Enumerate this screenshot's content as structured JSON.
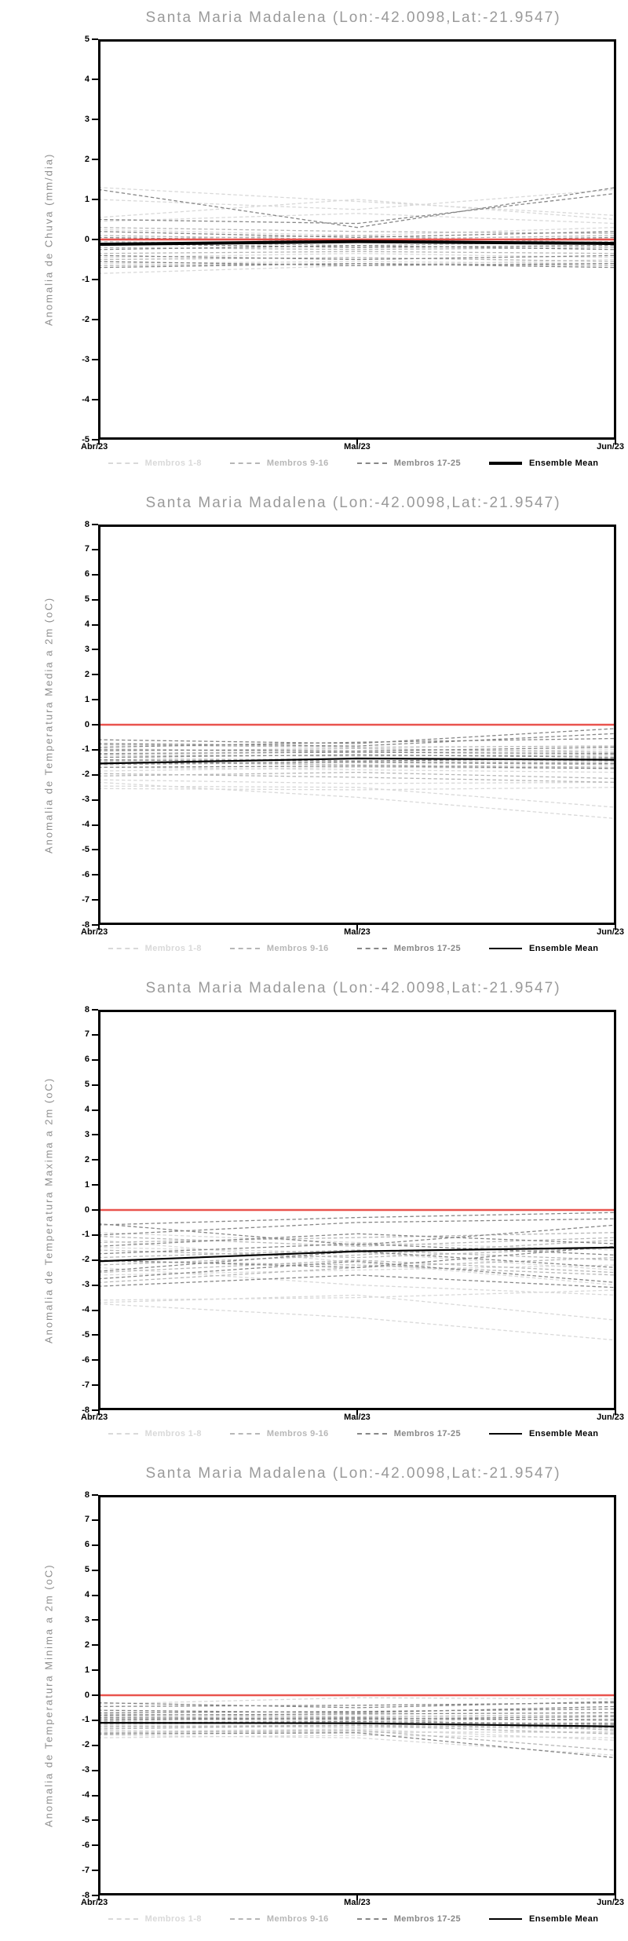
{
  "group_colors": [
    "#d9d9d9",
    "#b7b7b7",
    "#878787"
  ],
  "mean_color": "#000000",
  "zero_line_color": "#e9534e",
  "axis_color": "#000000",
  "title_color": "#9a9a9a",
  "legend": {
    "items": [
      {
        "label": "Membros 1-8",
        "color": "#d9d9d9",
        "dashed": true
      },
      {
        "label": "Membros 9-16",
        "color": "#b7b7b7",
        "dashed": true
      },
      {
        "label": "Membros 17-25",
        "color": "#878787",
        "dashed": true
      },
      {
        "label": "Ensemble Mean",
        "color": "#000000",
        "dashed": false
      }
    ]
  },
  "chart_data": [
    {
      "type": "line",
      "title": "Santa Maria Madalena (Lon:-42.0098,Lat:-21.9547)",
      "ylabel": "Anomalia de Chuva (mm/dia)",
      "xlabel": "",
      "x_categories": [
        "Abr/23",
        "Mai/23",
        "Jun/23"
      ],
      "ylim": [
        -5,
        5
      ],
      "y_ticks": [
        5,
        4,
        3,
        2,
        1,
        0,
        -1,
        -2,
        -3,
        -4,
        -5
      ],
      "zero_line": 0,
      "mean_width": 4,
      "ensemble_mean": [
        -0.12,
        -0.05,
        -0.1
      ],
      "members": [
        {
          "g": 0,
          "v": [
            1.3,
            0.95,
            0.6
          ]
        },
        {
          "g": 0,
          "v": [
            1.0,
            0.75,
            1.25
          ]
        },
        {
          "g": 0,
          "v": [
            0.55,
            1.0,
            0.5
          ]
        },
        {
          "g": 0,
          "v": [
            0.45,
            0.65,
            0.4
          ]
        },
        {
          "g": 0,
          "v": [
            -0.85,
            -0.65,
            -0.5
          ]
        },
        {
          "g": 0,
          "v": [
            -0.6,
            -0.55,
            -0.6
          ]
        },
        {
          "g": 0,
          "v": [
            0.25,
            0.1,
            0.3
          ]
        },
        {
          "g": 0,
          "v": [
            -0.45,
            -0.35,
            -0.45
          ]
        },
        {
          "g": 1,
          "v": [
            0.3,
            0.2,
            0.15
          ]
        },
        {
          "g": 1,
          "v": [
            0.1,
            0.0,
            0.1
          ]
        },
        {
          "g": 1,
          "v": [
            -0.05,
            -0.15,
            -0.05
          ]
        },
        {
          "g": 1,
          "v": [
            -0.2,
            -0.25,
            -0.2
          ]
        },
        {
          "g": 1,
          "v": [
            -0.35,
            -0.3,
            -0.35
          ]
        },
        {
          "g": 1,
          "v": [
            -0.5,
            -0.45,
            -0.55
          ]
        },
        {
          "g": 1,
          "v": [
            -0.65,
            -0.6,
            -0.65
          ]
        },
        {
          "g": 1,
          "v": [
            0.0,
            0.1,
            -0.1
          ]
        },
        {
          "g": 2,
          "v": [
            1.25,
            0.3,
            1.3
          ]
        },
        {
          "g": 2,
          "v": [
            0.5,
            0.4,
            1.15
          ]
        },
        {
          "g": 2,
          "v": [
            0.2,
            0.05,
            0.2
          ]
        },
        {
          "g": 2,
          "v": [
            0.05,
            -0.05,
            0.05
          ]
        },
        {
          "g": 2,
          "v": [
            -0.1,
            -0.2,
            -0.15
          ]
        },
        {
          "g": 2,
          "v": [
            -0.25,
            -0.15,
            -0.25
          ]
        },
        {
          "g": 2,
          "v": [
            -0.4,
            -0.5,
            -0.4
          ]
        },
        {
          "g": 2,
          "v": [
            -0.55,
            -0.65,
            -0.6
          ]
        },
        {
          "g": 2,
          "v": [
            -0.7,
            -0.6,
            -0.7
          ]
        }
      ]
    },
    {
      "type": "line",
      "title": "Santa Maria Madalena (Lon:-42.0098,Lat:-21.9547)",
      "ylabel": "Anomalia de Temperatura Media a 2m (oC)",
      "xlabel": "",
      "x_categories": [
        "Abr/23",
        "Mai/23",
        "Jun/23"
      ],
      "ylim": [
        -8,
        8
      ],
      "y_ticks": [
        8,
        7,
        6,
        5,
        4,
        3,
        2,
        1,
        0,
        -1,
        -2,
        -3,
        -4,
        -5,
        -6,
        -7,
        -8
      ],
      "zero_line": 0,
      "mean_width": 2.2,
      "ensemble_mean": [
        -1.55,
        -1.35,
        -1.4
      ],
      "members": [
        {
          "g": 0,
          "v": [
            -2.3,
            -2.9,
            -3.75
          ]
        },
        {
          "g": 0,
          "v": [
            -2.45,
            -2.5,
            -3.3
          ]
        },
        {
          "g": 0,
          "v": [
            -2.55,
            -2.6,
            -2.5
          ]
        },
        {
          "g": 0,
          "v": [
            -2.2,
            -2.35,
            -2.3
          ]
        },
        {
          "g": 0,
          "v": [
            -1.7,
            -1.8,
            -1.9
          ]
        },
        {
          "g": 0,
          "v": [
            -1.3,
            -1.45,
            -1.5
          ]
        },
        {
          "g": 0,
          "v": [
            -0.95,
            -1.1,
            -1.0
          ]
        },
        {
          "g": 0,
          "v": [
            -1.85,
            -1.7,
            -1.75
          ]
        },
        {
          "g": 1,
          "v": [
            -2.05,
            -1.9,
            -2.15
          ]
        },
        {
          "g": 1,
          "v": [
            -1.95,
            -2.1,
            -2.3
          ]
        },
        {
          "g": 1,
          "v": [
            -1.6,
            -1.5,
            -1.6
          ]
        },
        {
          "g": 1,
          "v": [
            -1.45,
            -1.35,
            -1.45
          ]
        },
        {
          "g": 1,
          "v": [
            -1.2,
            -1.25,
            -1.2
          ]
        },
        {
          "g": 1,
          "v": [
            -1.05,
            -0.95,
            -1.1
          ]
        },
        {
          "g": 1,
          "v": [
            -0.8,
            -0.9,
            -0.85
          ]
        },
        {
          "g": 1,
          "v": [
            -1.5,
            -1.6,
            -1.7
          ]
        },
        {
          "g": 2,
          "v": [
            -0.6,
            -0.75,
            -0.15
          ]
        },
        {
          "g": 2,
          "v": [
            -0.75,
            -0.85,
            -0.35
          ]
        },
        {
          "g": 2,
          "v": [
            -0.9,
            -0.7,
            -0.55
          ]
        },
        {
          "g": 2,
          "v": [
            -1.0,
            -1.05,
            -0.9
          ]
        },
        {
          "g": 2,
          "v": [
            -1.15,
            -1.1,
            -1.15
          ]
        },
        {
          "g": 2,
          "v": [
            -1.3,
            -1.2,
            -1.3
          ]
        },
        {
          "g": 2,
          "v": [
            -1.4,
            -1.45,
            -1.35
          ]
        },
        {
          "g": 2,
          "v": [
            -1.55,
            -1.5,
            -1.55
          ]
        },
        {
          "g": 2,
          "v": [
            -1.7,
            -1.65,
            -1.75
          ]
        }
      ]
    },
    {
      "type": "line",
      "title": "Santa Maria Madalena (Lon:-42.0098,Lat:-21.9547)",
      "ylabel": "Anomalia de Temperatura Maxima a 2m (oC)",
      "xlabel": "",
      "x_categories": [
        "Abr/23",
        "Mai/23",
        "Jun/23"
      ],
      "ylim": [
        -8,
        8
      ],
      "y_ticks": [
        8,
        7,
        6,
        5,
        4,
        3,
        2,
        1,
        0,
        -1,
        -2,
        -3,
        -4,
        -5,
        -6,
        -7,
        -8
      ],
      "zero_line": 0,
      "mean_width": 2.2,
      "ensemble_mean": [
        -2.05,
        -1.65,
        -1.5
      ],
      "members": [
        {
          "g": 0,
          "v": [
            -3.75,
            -4.3,
            -5.2
          ]
        },
        {
          "g": 0,
          "v": [
            -3.7,
            -3.4,
            -4.4
          ]
        },
        {
          "g": 0,
          "v": [
            -3.6,
            -3.5,
            -3.2
          ]
        },
        {
          "g": 0,
          "v": [
            -2.3,
            -3.0,
            -3.4
          ]
        },
        {
          "g": 0,
          "v": [
            -1.2,
            -2.1,
            -3.0
          ]
        },
        {
          "g": 0,
          "v": [
            -2.6,
            -2.4,
            -2.2
          ]
        },
        {
          "g": 0,
          "v": [
            -1.5,
            -1.7,
            -2.4
          ]
        },
        {
          "g": 0,
          "v": [
            -0.9,
            -1.3,
            -1.6
          ]
        },
        {
          "g": 1,
          "v": [
            -2.9,
            -2.3,
            -1.9
          ]
        },
        {
          "g": 1,
          "v": [
            -2.5,
            -2.0,
            -2.5
          ]
        },
        {
          "g": 1,
          "v": [
            -2.2,
            -1.8,
            -1.2
          ]
        },
        {
          "g": 1,
          "v": [
            -1.9,
            -1.6,
            -2.0
          ]
        },
        {
          "g": 1,
          "v": [
            -1.6,
            -1.9,
            -1.5
          ]
        },
        {
          "g": 1,
          "v": [
            -1.3,
            -1.1,
            -0.9
          ]
        },
        {
          "g": 1,
          "v": [
            -1.05,
            -1.45,
            -1.1
          ]
        },
        {
          "g": 1,
          "v": [
            -2.05,
            -2.2,
            -2.6
          ]
        },
        {
          "g": 2,
          "v": [
            -0.6,
            -0.3,
            -0.1
          ]
        },
        {
          "g": 2,
          "v": [
            -0.55,
            -1.4,
            -0.6
          ]
        },
        {
          "g": 2,
          "v": [
            -1.0,
            -0.5,
            -0.35
          ]
        },
        {
          "g": 2,
          "v": [
            -1.45,
            -0.95,
            -1.35
          ]
        },
        {
          "g": 2,
          "v": [
            -2.0,
            -2.3,
            -1.45
          ]
        },
        {
          "g": 2,
          "v": [
            -2.45,
            -1.65,
            -2.3
          ]
        },
        {
          "g": 2,
          "v": [
            -2.75,
            -2.05,
            -2.9
          ]
        },
        {
          "g": 2,
          "v": [
            -3.05,
            -2.6,
            -3.1
          ]
        },
        {
          "g": 2,
          "v": [
            -1.75,
            -1.35,
            -1.8
          ]
        }
      ]
    },
    {
      "type": "line",
      "title": "Santa Maria Madalena (Lon:-42.0098,Lat:-21.9547)",
      "ylabel": "Anomalia de Temperatura Minima a 2m (oC)",
      "xlabel": "",
      "x_categories": [
        "Abr/23",
        "Mai/23",
        "Jun/23"
      ],
      "ylim": [
        -8,
        8
      ],
      "y_ticks": [
        8,
        7,
        6,
        5,
        4,
        3,
        2,
        1,
        0,
        -1,
        -2,
        -3,
        -4,
        -5,
        -6,
        -7,
        -8
      ],
      "zero_line": 0,
      "mean_width": 2.2,
      "ensemble_mean": [
        -1.1,
        -1.12,
        -1.25
      ],
      "members": [
        {
          "g": 0,
          "v": [
            -1.7,
            -1.6,
            -1.7
          ]
        },
        {
          "g": 0,
          "v": [
            -1.6,
            -1.7,
            -2.4
          ]
        },
        {
          "g": 0,
          "v": [
            -1.55,
            -1.45,
            -1.5
          ]
        },
        {
          "g": 0,
          "v": [
            -1.4,
            -1.5,
            -1.45
          ]
        },
        {
          "g": 0,
          "v": [
            -1.3,
            -1.25,
            -1.35
          ]
        },
        {
          "g": 0,
          "v": [
            -0.35,
            -0.1,
            -0.15
          ]
        },
        {
          "g": 0,
          "v": [
            -1.45,
            -1.35,
            -1.8
          ]
        },
        {
          "g": 0,
          "v": [
            -1.2,
            -1.3,
            -1.25
          ]
        },
        {
          "g": 1,
          "v": [
            -1.15,
            -1.1,
            -1.2
          ]
        },
        {
          "g": 1,
          "v": [
            -1.05,
            -1.15,
            -1.1
          ]
        },
        {
          "g": 1,
          "v": [
            -0.95,
            -1.0,
            -0.95
          ]
        },
        {
          "g": 1,
          "v": [
            -0.85,
            -0.9,
            -1.4
          ]
        },
        {
          "g": 1,
          "v": [
            -1.35,
            -1.2,
            -1.55
          ]
        },
        {
          "g": 1,
          "v": [
            -1.5,
            -1.4,
            -2.2
          ]
        },
        {
          "g": 1,
          "v": [
            -0.75,
            -0.85,
            -0.8
          ]
        },
        {
          "g": 1,
          "v": [
            -1.25,
            -1.2,
            -1.3
          ]
        },
        {
          "g": 2,
          "v": [
            -0.3,
            -0.5,
            -0.25
          ]
        },
        {
          "g": 2,
          "v": [
            -0.45,
            -0.4,
            -0.3
          ]
        },
        {
          "g": 2,
          "v": [
            -0.6,
            -0.7,
            -0.45
          ]
        },
        {
          "g": 2,
          "v": [
            -0.7,
            -0.65,
            -0.55
          ]
        },
        {
          "g": 2,
          "v": [
            -0.8,
            -0.75,
            -0.7
          ]
        },
        {
          "g": 2,
          "v": [
            -0.9,
            -0.95,
            -0.85
          ]
        },
        {
          "g": 2,
          "v": [
            -1.0,
            -0.9,
            -1.0
          ]
        },
        {
          "g": 2,
          "v": [
            -1.1,
            -1.05,
            -1.15
          ]
        },
        {
          "g": 2,
          "v": [
            -1.55,
            -1.5,
            -2.5
          ]
        }
      ]
    }
  ]
}
